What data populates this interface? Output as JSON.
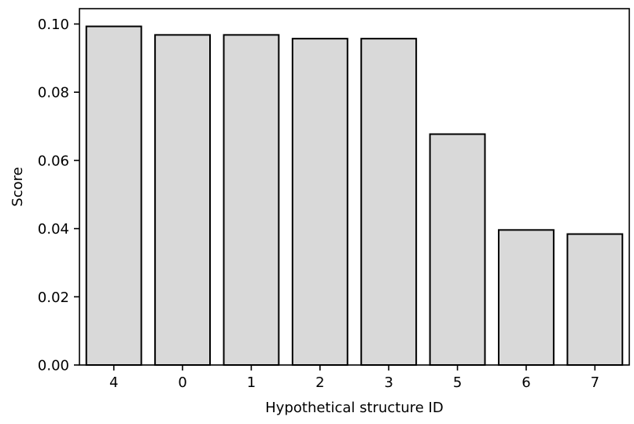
{
  "chart_data": {
    "type": "bar",
    "title": "",
    "xlabel": "Hypothetical structure ID",
    "ylabel": "Score",
    "categories": [
      "4",
      "0",
      "1",
      "2",
      "3",
      "5",
      "6",
      "7"
    ],
    "values": [
      0.0993,
      0.0968,
      0.0968,
      0.0957,
      0.0957,
      0.0677,
      0.0396,
      0.0384
    ],
    "ylim": [
      0,
      0.1045
    ],
    "yticks": [
      0.0,
      0.02,
      0.04,
      0.06,
      0.08,
      0.1
    ],
    "ytick_labels": [
      "0.00",
      "0.02",
      "0.04",
      "0.06",
      "0.08",
      "0.10"
    ],
    "grid": false,
    "legend": "none",
    "colors": {
      "bar_fill": "#d9d9d9",
      "bar_edge": "#000000",
      "axis": "#000000"
    }
  }
}
